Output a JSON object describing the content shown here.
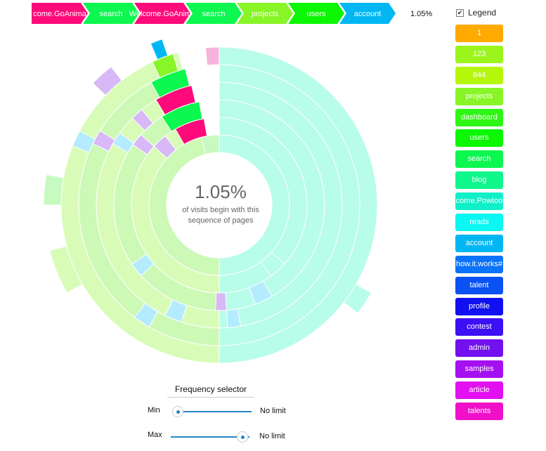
{
  "breadcrumb": {
    "steps": [
      {
        "label": "come.GoAnima",
        "color": "#ff0a7a"
      },
      {
        "label": "search",
        "color": "#0cf74f"
      },
      {
        "label": "Welcome.GoAnima",
        "color": "#ff0a7a"
      },
      {
        "label": "search",
        "color": "#0cf74f"
      },
      {
        "label": "projects",
        "color": "#88f527"
      },
      {
        "label": "users",
        "color": "#0cf703"
      },
      {
        "label": "account",
        "color": "#00b7f3"
      }
    ],
    "percentage": "1.05%"
  },
  "center": {
    "percentage": "1.05%",
    "line1": "of visits begin with this",
    "line2": "sequence of pages"
  },
  "legend": {
    "toggle_label": "Legend",
    "checked": true,
    "items": [
      {
        "label": "1",
        "color": "#ffaa00"
      },
      {
        "label": "123",
        "color": "#9bf51c"
      },
      {
        "label": "844",
        "color": "#b4f70b"
      },
      {
        "label": "projects",
        "color": "#88f527"
      },
      {
        "label": "dashboard",
        "color": "#2ef715"
      },
      {
        "label": "users",
        "color": "#0cf703"
      },
      {
        "label": "search",
        "color": "#0cf74f"
      },
      {
        "label": "blog",
        "color": "#10f78c"
      },
      {
        "label": "come.Powtoo",
        "color": "#10f0c8"
      },
      {
        "label": "reads",
        "color": "#0af7f3"
      },
      {
        "label": "account",
        "color": "#00b7f3"
      },
      {
        "label": "how.it.works#",
        "color": "#0b73f7"
      },
      {
        "label": "talent",
        "color": "#0a52f3"
      },
      {
        "label": "profile",
        "color": "#1010f0"
      },
      {
        "label": "contest",
        "color": "#3c10f5"
      },
      {
        "label": "admin",
        "color": "#7210f0"
      },
      {
        "label": "samples",
        "color": "#a510f0"
      },
      {
        "label": "article",
        "color": "#e210f0"
      },
      {
        "label": "talents",
        "color": "#f010c8"
      }
    ]
  },
  "frequency": {
    "title": "Frequency selector",
    "min_label": "Min",
    "min_value": "No limit",
    "min_position": 0,
    "max_label": "Max",
    "max_value": "No limit",
    "max_position": 1
  }
}
